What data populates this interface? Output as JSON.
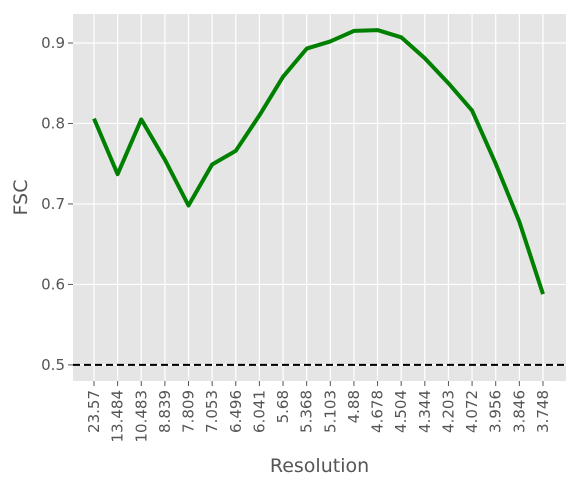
{
  "chart_data": {
    "type": "line",
    "title": "",
    "xlabel": "Resolution",
    "ylabel": "FSC",
    "categories": [
      "23.57",
      "13.484",
      "10.483",
      "8.839",
      "7.809",
      "7.053",
      "6.496",
      "6.041",
      "5.68",
      "5.368",
      "5.103",
      "4.88",
      "4.678",
      "4.504",
      "4.344",
      "4.203",
      "4.072",
      "3.956",
      "3.846",
      "3.748"
    ],
    "series": [
      {
        "values": [
          0.806,
          0.737,
          0.805,
          0.755,
          0.698,
          0.749,
          0.766,
          0.81,
          0.858,
          0.893,
          0.902,
          0.915,
          0.916,
          0.907,
          0.881,
          0.85,
          0.816,
          0.75,
          0.678,
          0.588
        ],
        "color": "#008000"
      }
    ],
    "reference_line": {
      "y": 0.5,
      "style": "dashed",
      "color": "#000000"
    },
    "yticks": [
      "0.5",
      "0.6",
      "0.7",
      "0.8",
      "0.9"
    ],
    "ylim": [
      0.48,
      0.936
    ],
    "grid": true,
    "legend": "none",
    "style": {
      "background": "#e5e5e5",
      "grid_color": "#ffffff"
    }
  }
}
